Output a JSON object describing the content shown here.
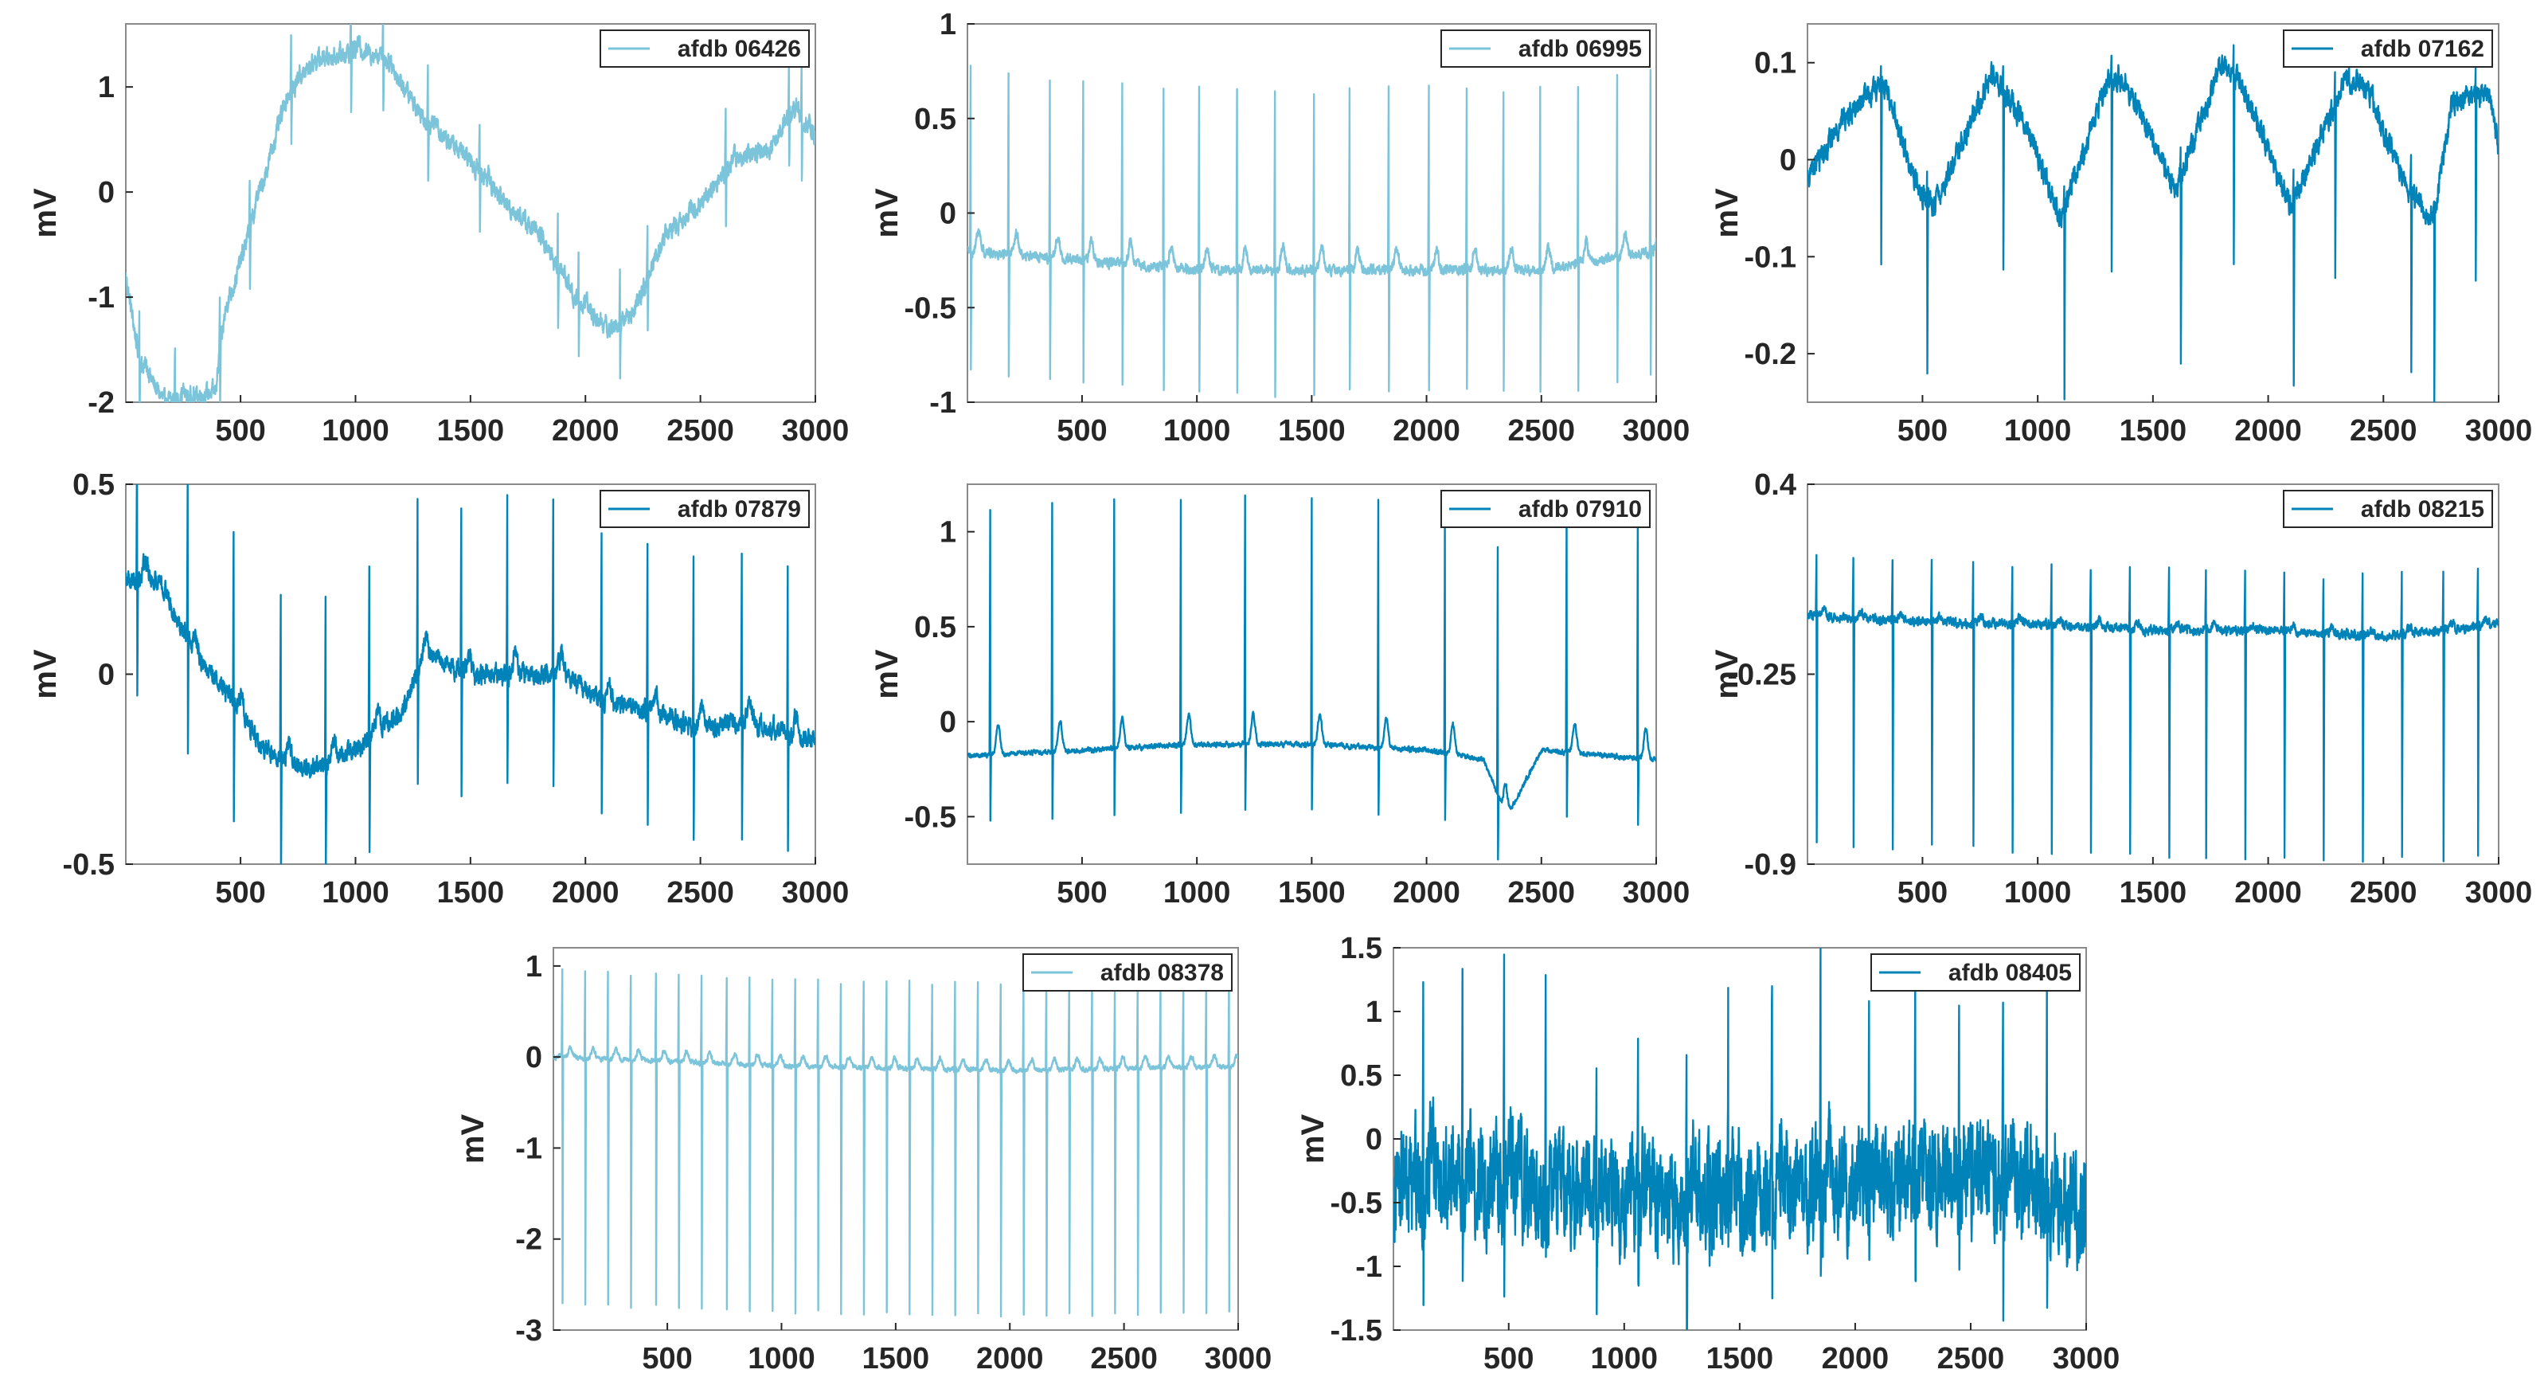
{
  "colors": {
    "light": "#7cc4d9",
    "dark": "#0083b8"
  },
  "chart_data": [
    {
      "type": "line",
      "legend": "afdb 06426",
      "ylabel": "mV",
      "xlim": [
        1,
        3000
      ],
      "ylim": [
        -2,
        1.6
      ],
      "xticks": [
        "500",
        "1000",
        "1500",
        "2000",
        "2500",
        "3000"
      ],
      "yticks": [
        "1",
        "0",
        "-1",
        "-2"
      ],
      "shade": "light",
      "noise": 0.07,
      "spike": 0.5,
      "negspike": 0.55,
      "beats": [
        60,
        215,
        410,
        540,
        720,
        980,
        1120,
        1315,
        1540,
        1880,
        1970,
        2150,
        2270,
        2610,
        2885,
        2940
      ],
      "baseline": [
        [
          1,
          -0.8
        ],
        [
          60,
          -1.6
        ],
        [
          170,
          -2
        ],
        [
          390,
          -1.9
        ],
        [
          430,
          -1.2
        ],
        [
          560,
          -0.2
        ],
        [
          700,
          0.9
        ],
        [
          820,
          1.25
        ],
        [
          1000,
          1.35
        ],
        [
          1120,
          1.3
        ],
        [
          1300,
          0.7
        ],
        [
          1500,
          0.3
        ],
        [
          1650,
          -0.1
        ],
        [
          1800,
          -0.4
        ],
        [
          1950,
          -1
        ],
        [
          2100,
          -1.3
        ],
        [
          2200,
          -1.2
        ],
        [
          2350,
          -0.4
        ],
        [
          2500,
          -0.1
        ],
        [
          2650,
          0.3
        ],
        [
          2800,
          0.4
        ],
        [
          2900,
          0.8
        ],
        [
          3000,
          0.5
        ]
      ]
    },
    {
      "type": "line",
      "legend": "afdb 06995",
      "ylabel": "mV",
      "xlim": [
        1,
        3000
      ],
      "ylim": [
        -1,
        1
      ],
      "xticks": [
        "500",
        "1000",
        "1500",
        "2000",
        "2500",
        "3000"
      ],
      "yticks": [
        "1",
        "0.5",
        "0",
        "-0.5",
        "-1"
      ],
      "shade": "light",
      "noise": 0.02,
      "spike": 0.95,
      "negspike": 0.65,
      "beats": [
        15,
        180,
        360,
        505,
        675,
        855,
        1010,
        1175,
        1340,
        1510,
        1665,
        1835,
        2010,
        2175,
        2335,
        2495,
        2660,
        2830,
        2975
      ],
      "baseline": [
        [
          1,
          -0.2
        ],
        [
          500,
          -0.25
        ],
        [
          1000,
          -0.3
        ],
        [
          1500,
          -0.3
        ],
        [
          2000,
          -0.3
        ],
        [
          2500,
          -0.3
        ],
        [
          3000,
          -0.2
        ]
      ]
    },
    {
      "type": "line",
      "legend": "afdb 07162",
      "ylabel": "mV",
      "xlim": [
        1,
        3000
      ],
      "ylim": [
        -0.25,
        0.14
      ],
      "xticks": [
        "500",
        "1000",
        "1500",
        "2000",
        "2500",
        "3000"
      ],
      "yticks": [
        "0.1",
        "0",
        "-0.1",
        "-0.2"
      ],
      "shade": "dark",
      "noise": 0.009,
      "spike": 0.025,
      "negspike": 0.19,
      "beats": [
        320,
        520,
        850,
        1115,
        1320,
        1620,
        1850,
        2110,
        2290,
        2620,
        2720,
        2900
      ],
      "baseline": [
        [
          1,
          -0.02
        ],
        [
          150,
          0.04
        ],
        [
          330,
          0.08
        ],
        [
          480,
          -0.03
        ],
        [
          550,
          -0.05
        ],
        [
          800,
          0.09
        ],
        [
          960,
          0.03
        ],
        [
          1100,
          -0.06
        ],
        [
          1300,
          0.08
        ],
        [
          1380,
          0.08
        ],
        [
          1600,
          -0.03
        ],
        [
          1800,
          0.1
        ],
        [
          1880,
          0.08
        ],
        [
          2100,
          -0.05
        ],
        [
          2330,
          0.08
        ],
        [
          2420,
          0.08
        ],
        [
          2600,
          -0.03
        ],
        [
          2720,
          -0.06
        ],
        [
          2800,
          0.06
        ],
        [
          2960,
          0.07
        ],
        [
          3000,
          0.01
        ]
      ]
    },
    {
      "type": "line",
      "legend": "afdb 07879",
      "ylabel": "mV",
      "xlim": [
        1,
        3000
      ],
      "ylim": [
        -0.5,
        0.5
      ],
      "xticks": [
        "500",
        "1000",
        "1500",
        "2000",
        "2500",
        "3000"
      ],
      "yticks": [
        "0.5",
        "0",
        "-0.5"
      ],
      "shade": "dark",
      "noise": 0.02,
      "spike": 0.45,
      "negspike": 0.3,
      "beats": [
        50,
        270,
        470,
        675,
        870,
        1060,
        1270,
        1460,
        1660,
        1860,
        2070,
        2270,
        2470,
        2680,
        2880
      ],
      "baseline": [
        [
          1,
          0.25
        ],
        [
          150,
          0.25
        ],
        [
          300,
          0.05
        ],
        [
          450,
          -0.05
        ],
        [
          600,
          -0.2
        ],
        [
          800,
          -0.25
        ],
        [
          1000,
          -0.2
        ],
        [
          1200,
          -0.1
        ],
        [
          1300,
          0.05
        ],
        [
          1500,
          0
        ],
        [
          1700,
          0
        ],
        [
          1900,
          0
        ],
        [
          2100,
          -0.08
        ],
        [
          2300,
          -0.1
        ],
        [
          2500,
          -0.15
        ],
        [
          2700,
          -0.12
        ],
        [
          3000,
          -0.18
        ]
      ]
    },
    {
      "type": "line",
      "legend": "afdb 07910",
      "ylabel": "mV",
      "xlim": [
        1,
        3000
      ],
      "ylim": [
        -0.75,
        1.25
      ],
      "xticks": [
        "500",
        "1000",
        "1500",
        "2000",
        "2500",
        "3000"
      ],
      "yticks": [
        "1",
        "0.5",
        "0",
        "-0.5"
      ],
      "shade": "dark",
      "noise": 0.01,
      "spike": 1.3,
      "negspike": 0.35,
      "beats": [
        100,
        370,
        640,
        930,
        1210,
        1500,
        1790,
        2080,
        2310,
        2610,
        2920
      ],
      "baseline": [
        [
          1,
          -0.18
        ],
        [
          500,
          -0.15
        ],
        [
          1000,
          -0.12
        ],
        [
          1500,
          -0.12
        ],
        [
          2000,
          -0.15
        ],
        [
          2250,
          -0.2
        ],
        [
          2350,
          -0.5
        ],
        [
          2500,
          -0.15
        ],
        [
          3000,
          -0.2
        ]
      ]
    },
    {
      "type": "line",
      "legend": "afdb 08215",
      "ylabel": "mV",
      "xlim": [
        1,
        3000
      ],
      "ylim": [
        -0.9,
        0.4
      ],
      "xticks": [
        "500",
        "1000",
        "1500",
        "2000",
        "2500",
        "3000"
      ],
      "yticks": [
        "0.4",
        "-0.25",
        "-0.9"
      ],
      "shade": "dark",
      "noise": 0.012,
      "spike": 0.2,
      "negspike": 0.78,
      "beats": [
        40,
        200,
        370,
        540,
        720,
        890,
        1060,
        1230,
        1400,
        1570,
        1730,
        1900,
        2070,
        2240,
        2410,
        2580,
        2760,
        2910
      ],
      "baseline": [
        [
          1,
          -0.05
        ],
        [
          500,
          -0.07
        ],
        [
          1000,
          -0.08
        ],
        [
          1500,
          -0.1
        ],
        [
          2000,
          -0.1
        ],
        [
          2500,
          -0.12
        ],
        [
          3000,
          -0.08
        ]
      ]
    },
    {
      "type": "line",
      "legend": "afdb 08378",
      "ylabel": "mV",
      "xlim": [
        1,
        3000
      ],
      "ylim": [
        -3,
        1.2
      ],
      "xticks": [
        "500",
        "1000",
        "1500",
        "2000",
        "2500",
        "3000"
      ],
      "yticks": [
        "1",
        "0",
        "-1",
        "-2",
        "-3"
      ],
      "shade": "light",
      "noise": 0.02,
      "spike": 0.95,
      "negspike": 2.7,
      "beats": [
        40,
        140,
        240,
        340,
        450,
        550,
        650,
        760,
        860,
        960,
        1060,
        1160,
        1260,
        1360,
        1460,
        1560,
        1660,
        1760,
        1860,
        1960,
        2060,
        2160,
        2260,
        2360,
        2460,
        2560,
        2660,
        2760,
        2860,
        2960
      ],
      "baseline": [
        [
          1,
          0
        ],
        [
          1000,
          -0.1
        ],
        [
          2000,
          -0.15
        ],
        [
          3000,
          -0.1
        ]
      ]
    },
    {
      "type": "line",
      "legend": "afdb 08405",
      "ylabel": "mV",
      "xlim": [
        1,
        3000
      ],
      "ylim": [
        -1.5,
        1.5
      ],
      "xticks": [
        "500",
        "1000",
        "1500",
        "2000",
        "2500",
        "3000"
      ],
      "yticks": [
        "1.5",
        "1",
        "0.5",
        "0",
        "-0.5",
        "-1",
        "-1.5"
      ],
      "shade": "dark",
      "noise": 0.33,
      "spike": 1.5,
      "negspike": 0.8,
      "beats": [
        130,
        300,
        480,
        660,
        880,
        1060,
        1270,
        1450,
        1640,
        1850,
        2060,
        2260,
        2450,
        2640,
        2830
      ],
      "baseline": [
        [
          1,
          -0.3
        ],
        [
          500,
          -0.35
        ],
        [
          1000,
          -0.45
        ],
        [
          1500,
          -0.45
        ],
        [
          2000,
          -0.4
        ],
        [
          2500,
          -0.3
        ],
        [
          3000,
          -0.55
        ]
      ]
    }
  ]
}
